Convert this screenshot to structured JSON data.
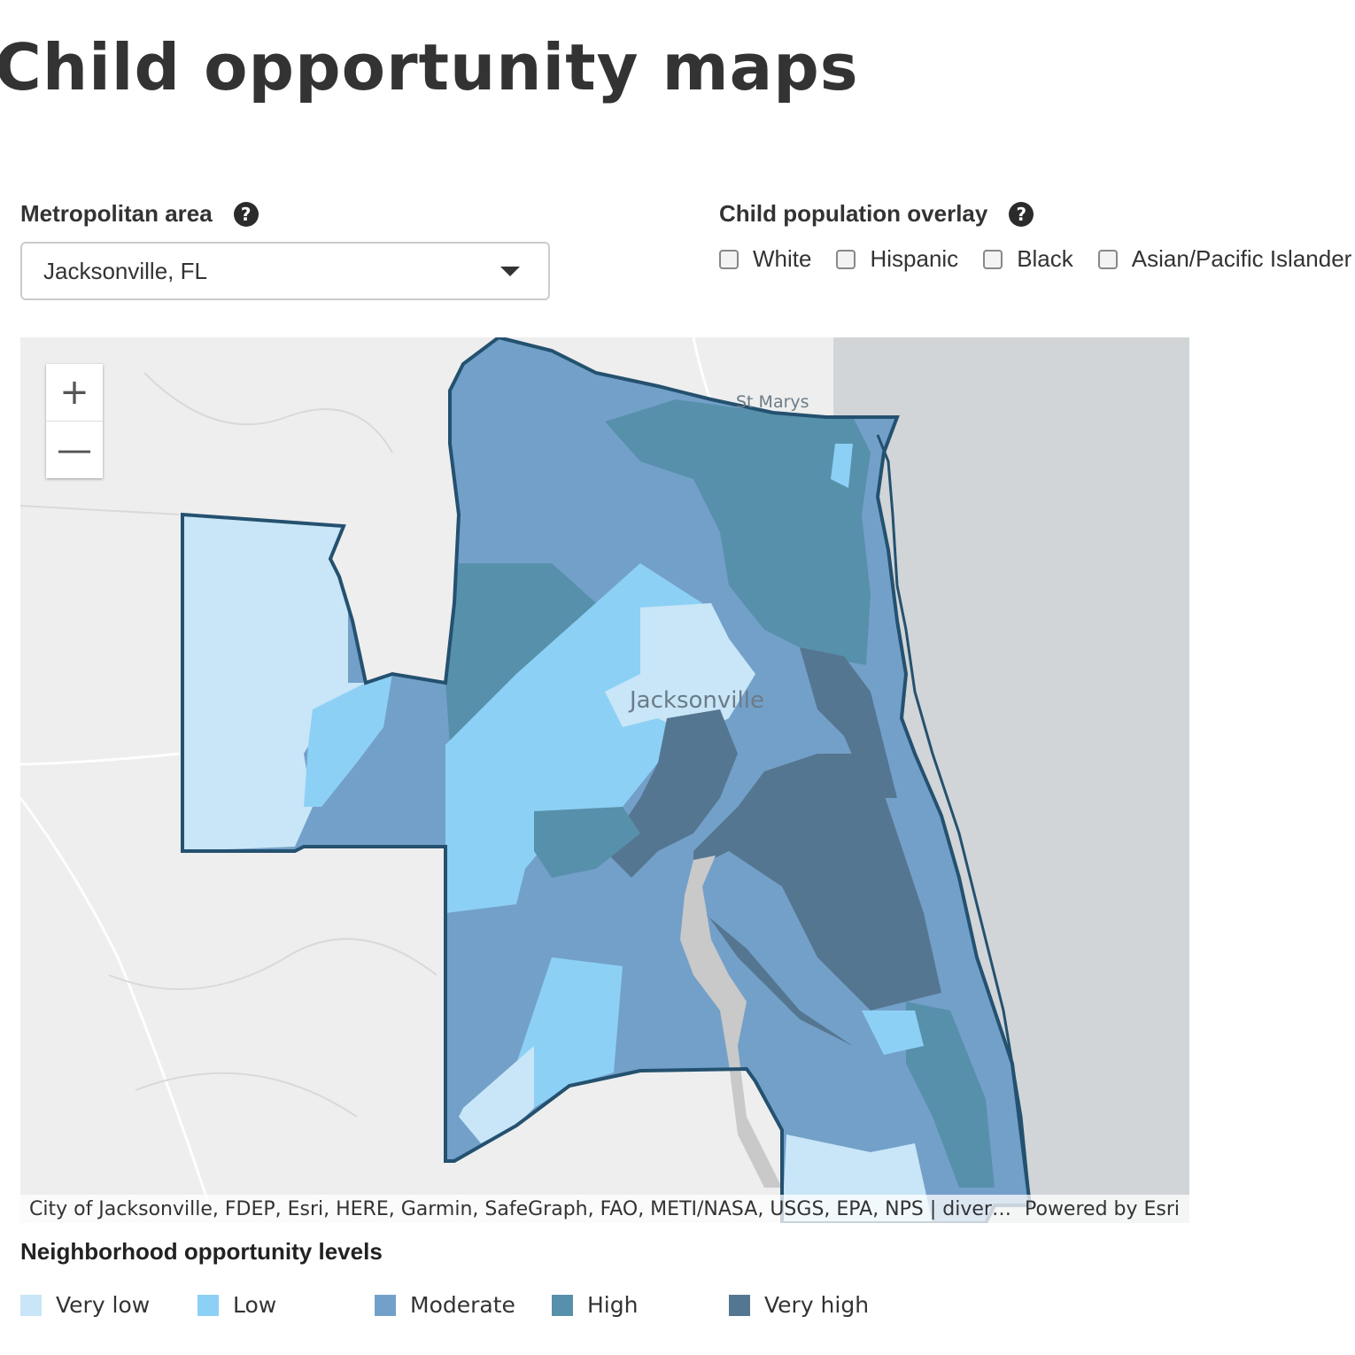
{
  "page": {
    "title": "Child opportunity maps"
  },
  "metro": {
    "label": "Metropolitan area",
    "help_icon": "question-circle-icon",
    "selected": "Jacksonville, FL"
  },
  "overlay": {
    "label": "Child population overlay",
    "help_icon": "question-circle-icon",
    "options": [
      {
        "label": "White",
        "checked": false
      },
      {
        "label": "Hispanic",
        "checked": false
      },
      {
        "label": "Black",
        "checked": false
      },
      {
        "label": "Asian/Pacific Islander",
        "checked": false
      }
    ]
  },
  "map": {
    "labels": {
      "city": "Jacksonville",
      "town": "St Marys"
    },
    "zoom_in": "+",
    "zoom_out": "—",
    "attribution": "City of Jacksonville, FDEP, Esri, HERE, Garmin, SafeGraph, FAO, METI/NASA, USGS, EPA, NPS | diversitydatakids.org",
    "powered_by": "Powered by Esri"
  },
  "legend": {
    "title": "Neighborhood opportunity levels",
    "levels": [
      {
        "label": "Very low",
        "color": "#c8e6f7"
      },
      {
        "label": "Low",
        "color": "#8dd0f5"
      },
      {
        "label": "Moderate",
        "color": "#73a0c9"
      },
      {
        "label": "High",
        "color": "#5790ab"
      },
      {
        "label": "Very high",
        "color": "#557690"
      }
    ]
  },
  "colors": {
    "ocean": "#d1d5d7",
    "land": "#eeeeee",
    "boundary": "#24516f"
  }
}
